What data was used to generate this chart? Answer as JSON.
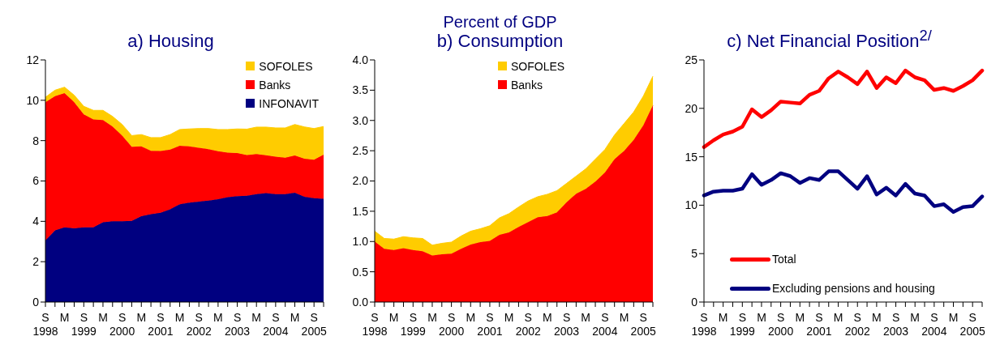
{
  "chart_data": [
    {
      "type": "area",
      "title": "a) Housing",
      "stacked": true,
      "legend": "top right",
      "categories": [
        "S\n1998",
        null,
        "M",
        null,
        "S\n1999",
        null,
        "M",
        null,
        "S\n2000",
        null,
        "M",
        null,
        "S\n2001",
        null,
        "M",
        null,
        "S\n2002",
        null,
        "M",
        null,
        "S\n2003",
        null,
        "M",
        null,
        "S\n2004",
        null,
        "M",
        null,
        "S\n2005",
        null
      ],
      "ylim": [
        0,
        12
      ],
      "yticks": [
        0,
        2,
        4,
        6,
        8,
        10,
        12
      ],
      "series": [
        {
          "name": "INFONAVIT",
          "color": "#000080",
          "values": [
            3.05,
            3.55,
            3.7,
            3.65,
            3.7,
            3.7,
            3.95,
            4.0,
            4.0,
            4.02,
            4.25,
            4.35,
            4.42,
            4.6,
            4.85,
            4.93,
            4.98,
            5.03,
            5.1,
            5.2,
            5.25,
            5.27,
            5.35,
            5.4,
            5.35,
            5.35,
            5.42,
            5.22,
            5.15,
            5.12
          ]
        },
        {
          "name": "Banks",
          "color": "#ff0000",
          "values": [
            6.85,
            6.65,
            6.65,
            6.25,
            5.6,
            5.35,
            5.07,
            4.7,
            4.25,
            3.68,
            3.47,
            3.15,
            3.06,
            2.96,
            2.9,
            2.79,
            2.67,
            2.55,
            2.37,
            2.2,
            2.13,
            2.01,
            1.98,
            1.87,
            1.85,
            1.8,
            1.84,
            1.88,
            1.9,
            2.18
          ]
        },
        {
          "name": "SOFOLES",
          "color": "#ffcc00",
          "values": [
            0.25,
            0.3,
            0.3,
            0.35,
            0.4,
            0.45,
            0.48,
            0.5,
            0.55,
            0.55,
            0.58,
            0.65,
            0.67,
            0.74,
            0.8,
            0.86,
            0.95,
            1.02,
            1.08,
            1.15,
            1.2,
            1.29,
            1.34,
            1.4,
            1.43,
            1.48,
            1.54,
            1.58,
            1.55,
            1.4
          ]
        }
      ]
    },
    {
      "type": "area",
      "title": "b) Consumption",
      "annotations": [
        "Percent of GDP"
      ],
      "stacked": true,
      "legend": "top",
      "categories": [
        "S\n1998",
        null,
        "M",
        null,
        "S\n1999",
        null,
        "M",
        null,
        "S\n2000",
        null,
        "M",
        null,
        "S\n2001",
        null,
        "M",
        null,
        "S\n2002",
        null,
        "M",
        null,
        "S\n2003",
        null,
        "M",
        null,
        "S\n2004",
        null,
        "M",
        null,
        "S\n2005",
        null
      ],
      "ylim": [
        0,
        4
      ],
      "yticks": [
        {
          "value": 0,
          "label": "0.0"
        },
        {
          "value": 0.5,
          "label": "0.5"
        },
        {
          "value": 1,
          "label": "1.0"
        },
        {
          "value": 1.5,
          "label": "1.5"
        },
        {
          "value": 2,
          "label": "2.0"
        },
        {
          "value": 2.5,
          "label": "2.5"
        },
        {
          "value": 3,
          "label": "3.0"
        },
        {
          "value": 3.5,
          "label": "3.5"
        },
        {
          "value": 4,
          "label": "4.0"
        }
      ],
      "series": [
        {
          "name": "Banks",
          "color": "#ff0000",
          "values": [
            1.0,
            0.88,
            0.86,
            0.89,
            0.86,
            0.84,
            0.77,
            0.79,
            0.8,
            0.88,
            0.95,
            0.99,
            1.01,
            1.11,
            1.15,
            1.24,
            1.32,
            1.4,
            1.42,
            1.48,
            1.65,
            1.79,
            1.87,
            1.99,
            2.14,
            2.36,
            2.5,
            2.68,
            2.92,
            3.25
          ]
        },
        {
          "name": "SOFOLES",
          "color": "#ffcc00",
          "values": [
            0.17,
            0.17,
            0.18,
            0.19,
            0.2,
            0.21,
            0.17,
            0.18,
            0.19,
            0.21,
            0.22,
            0.22,
            0.25,
            0.28,
            0.31,
            0.33,
            0.35,
            0.34,
            0.36,
            0.36,
            0.31,
            0.29,
            0.33,
            0.37,
            0.38,
            0.4,
            0.45,
            0.46,
            0.48,
            0.48
          ]
        }
      ]
    },
    {
      "type": "line",
      "title": "c) Net Financial Position$^{2/}$",
      "legend": "bottom left",
      "marker": "none",
      "line_style": "solid",
      "categories": [
        "S\n1998",
        null,
        "M",
        null,
        "S\n1999",
        null,
        "M",
        null,
        "S\n2000",
        null,
        "M",
        null,
        "S\n2001",
        null,
        "M",
        null,
        "S\n2002",
        null,
        "M",
        null,
        "S\n2003",
        null,
        "M",
        null,
        "S\n2004",
        null,
        "M",
        null,
        "S\n2005",
        null
      ],
      "ylim": [
        0,
        25
      ],
      "yticks": [
        0,
        5,
        10,
        15,
        20,
        25
      ],
      "series": [
        {
          "name": "Total",
          "color": "#ff0000",
          "values": [
            16.0,
            16.7,
            17.3,
            17.6,
            18.1,
            19.9,
            19.1,
            19.8,
            20.7,
            20.6,
            20.5,
            21.4,
            21.8,
            23.1,
            23.8,
            23.2,
            22.5,
            23.8,
            22.1,
            23.2,
            22.6,
            23.9,
            23.2,
            22.9,
            21.9,
            22.1,
            21.8,
            22.3,
            22.9,
            23.9
          ]
        },
        {
          "name": "Excluding pensions and housing",
          "color": "#000080",
          "values": [
            11.0,
            11.4,
            11.5,
            11.5,
            11.7,
            13.2,
            12.1,
            12.6,
            13.3,
            13.0,
            12.3,
            12.8,
            12.6,
            13.5,
            13.5,
            12.6,
            11.7,
            13.0,
            11.1,
            11.8,
            11.0,
            12.2,
            11.2,
            11.0,
            9.9,
            10.1,
            9.3,
            9.8,
            9.9,
            10.9
          ]
        }
      ]
    }
  ]
}
